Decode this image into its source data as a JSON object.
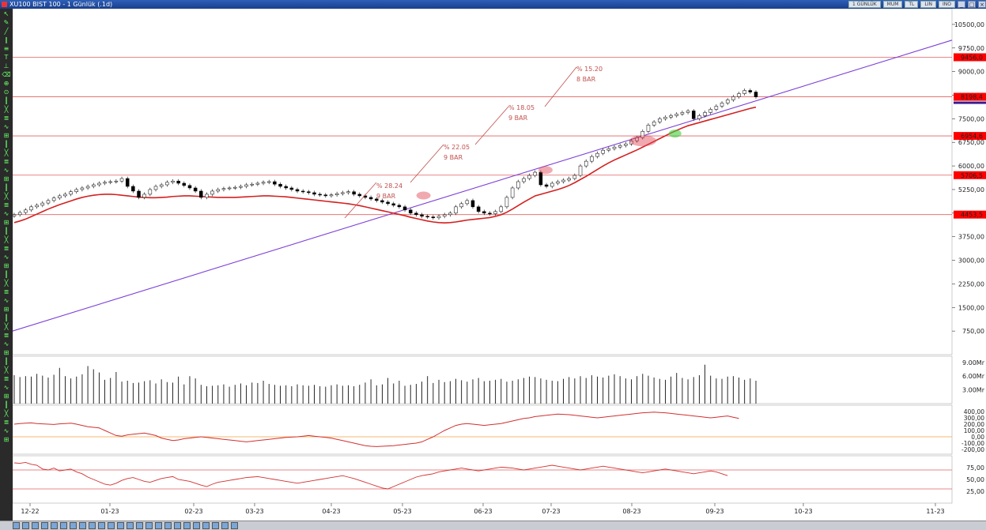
{
  "window": {
    "title": "XU100 BIST 100 - 1 Günlük (.1d)",
    "right_controls": [
      "1 GÜNLÜK",
      "MUM",
      "TL",
      "LIN",
      "INO"
    ]
  },
  "toolbar_icons": [
    "pointer-icon",
    "pen-icon",
    "line-icon",
    "channel-icon",
    "fib-icon",
    "text-icon",
    "ruler-icon",
    "eraser-icon",
    "zoom-icon",
    "magnet-icon"
  ],
  "price_axis": {
    "ticks": [
      "10500,00",
      "9750,00",
      "9000,00",
      "8250,00",
      "7500,00",
      "6750,00",
      "6000,00",
      "5250,00",
      "4500,00",
      "3750,00",
      "3000,00",
      "2250,00",
      "1500,00",
      "750,00"
    ],
    "tick_values": [
      10500,
      9750,
      9000,
      8250,
      7500,
      6750,
      6000,
      5250,
      4500,
      3750,
      3000,
      2250,
      1500,
      750
    ],
    "range": [
      0,
      11000
    ],
    "badges": [
      {
        "label": "9456,0",
        "value": 9456
      },
      {
        "label": "8198,4",
        "value": 8198.4
      },
      {
        "label": "6954,6",
        "value": 6954.6
      },
      {
        "label": "5706,5",
        "value": 5706.5
      },
      {
        "label": "4453,5",
        "value": 4453.5
      }
    ]
  },
  "date_axis": [
    "12-22",
    "01-23",
    "02-23",
    "03-23",
    "04-23",
    "05-23",
    "06-23",
    "07-23",
    "08-23",
    "09-23",
    "10-23",
    "11-23"
  ],
  "annotations": [
    {
      "pct": "% 28.24",
      "bars": "9 BAR"
    },
    {
      "pct": "% 22.05",
      "bars": "9 BAR"
    },
    {
      "pct": "% 18.05",
      "bars": "9 BAR"
    },
    {
      "pct": "% 15.20",
      "bars": "8 BAR"
    }
  ],
  "volume_axis": [
    "9.00Mr",
    "6.00Mr",
    "3.00Mr"
  ],
  "osc_axis": [
    "400,00",
    "300,00",
    "200,00",
    "100,00",
    "0,00",
    "-100,00",
    "-200,00"
  ],
  "rsi_axis": [
    "75,00",
    "50,00",
    "25,00"
  ],
  "colors": {
    "hline": "#e06060",
    "trend": "#7b3fd6",
    "ma": "#d42020",
    "badge": "#ff0000",
    "osc_ref": "#f0a040",
    "rsi_ref": "#e06060"
  },
  "chart_data": {
    "type": "candlestick",
    "series": [
      {
        "name": "XU100",
        "close": [
          4450,
          4520,
          4600,
          4700,
          4750,
          4820,
          4900,
          4980,
          5050,
          5100,
          5180,
          5250,
          5300,
          5350,
          5400,
          5450,
          5480,
          5500,
          5520,
          5600,
          5350,
          5200,
          5000,
          5100,
          5250,
          5350,
          5400,
          5480,
          5520,
          5450,
          5380,
          5300,
          5200,
          5000,
          5100,
          5200,
          5250,
          5280,
          5300,
          5320,
          5350,
          5400,
          5420,
          5450,
          5480,
          5500,
          5420,
          5350,
          5300,
          5250,
          5200,
          5180,
          5150,
          5100,
          5080,
          5050,
          5080,
          5120,
          5150,
          5180,
          5100,
          5050,
          5000,
          4950,
          4900,
          4850,
          4800,
          4750,
          4700,
          4600,
          4500,
          4450,
          4400,
          4380,
          4350,
          4400,
          4450,
          4500,
          4700,
          4800,
          4900,
          4700,
          4550,
          4500,
          4480,
          4550,
          4700,
          5000,
          5300,
          5500,
          5600,
          5700,
          5800,
          5400,
          5350,
          5450,
          5500,
          5550,
          5600,
          5700,
          6000,
          6150,
          6300,
          6400,
          6500,
          6550,
          6600,
          6650,
          6700,
          6800,
          6900,
          7100,
          7300,
          7400,
          7500,
          7550,
          7600,
          7650,
          7700,
          7750,
          7500,
          7600,
          7700,
          7800,
          7900,
          8000,
          8100,
          8200,
          8300,
          8400,
          8350,
          8198
        ]
      },
      {
        "name": "MA",
        "values": [
          4450,
          4500,
          4560,
          4640,
          4720,
          4800,
          4880,
          4950,
          5020,
          5080,
          5140,
          5200,
          5250,
          5290,
          5320,
          5340,
          5350,
          5350,
          5340,
          5320,
          5300,
          5280,
          5260,
          5250,
          5240,
          5240,
          5250,
          5260,
          5280,
          5290,
          5300,
          5300,
          5290,
          5280,
          5270,
          5260,
          5250,
          5250,
          5250,
          5250,
          5260,
          5270,
          5280,
          5290,
          5300,
          5300,
          5290,
          5280,
          5270,
          5250,
          5230,
          5210,
          5190,
          5170,
          5150,
          5130,
          5110,
          5090,
          5070,
          5050,
          5020,
          4990,
          4950,
          4910,
          4870,
          4830,
          4790,
          4750,
          4710,
          4670,
          4620,
          4580,
          4540,
          4500,
          4470,
          4450,
          4440,
          4450,
          4470,
          4500,
          4530,
          4550,
          4570,
          4590,
          4610,
          4650,
          4700,
          4780,
          4880,
          4990,
          5100,
          5200,
          5300,
          5350,
          5400,
          5450,
          5500,
          5560,
          5630,
          5720,
          5820,
          5920,
          6030,
          6140,
          6250,
          6350,
          6440,
          6520,
          6600,
          6680,
          6760,
          6850,
          6940,
          7030,
          7120,
          7210,
          7300,
          7380,
          7460,
          7530,
          7580,
          7630,
          7680,
          7730,
          7780,
          7830,
          7880,
          7930,
          7980,
          8030,
          8080,
          8120
        ]
      }
    ],
    "volume": [
      6.2,
      5.8,
      6.0,
      5.9,
      6.5,
      6.1,
      5.7,
      6.3,
      7.8,
      6.0,
      5.5,
      5.9,
      6.4,
      8.2,
      7.5,
      6.8,
      5.2,
      5.6,
      6.9,
      4.8,
      5.0,
      4.5,
      4.6,
      4.9,
      5.1,
      4.4,
      5.3,
      4.7,
      4.6,
      5.9,
      4.2,
      6.0,
      5.5,
      4.1,
      3.8,
      3.9,
      4.0,
      4.2,
      3.7,
      4.1,
      4.4,
      4.0,
      4.6,
      4.5,
      5.0,
      4.3,
      4.1,
      3.9,
      4.0,
      3.8,
      4.2,
      4.0,
      3.9,
      4.1,
      3.8,
      3.7,
      4.0,
      4.2,
      3.9,
      4.0,
      3.8,
      4.1,
      4.6,
      5.3,
      4.0,
      4.2,
      5.6,
      4.4,
      5.0,
      3.9,
      4.1,
      4.3,
      4.8,
      6.0,
      4.5,
      5.2,
      4.7,
      4.9,
      5.4,
      5.1,
      4.8,
      5.3,
      5.6,
      4.9,
      5.0,
      5.2,
      5.4,
      4.8,
      5.0,
      5.3,
      5.6,
      5.9,
      5.8,
      5.5,
      5.2,
      5.0,
      4.9,
      5.4,
      5.8,
      5.5,
      6.0,
      5.6,
      6.2,
      5.9,
      5.7,
      6.1,
      6.4,
      6.0,
      5.5,
      5.3,
      6.0,
      6.5,
      6.1,
      5.7,
      5.4,
      5.2,
      5.9,
      6.7,
      5.6,
      5.3,
      5.8,
      6.2,
      8.5,
      6.1,
      5.5,
      5.4,
      5.9,
      6.0,
      5.7,
      5.2,
      5.5,
      5.0
    ],
    "oscillator": [
      200,
      210,
      215,
      220,
      210,
      205,
      200,
      195,
      205,
      210,
      215,
      200,
      180,
      160,
      150,
      140,
      100,
      60,
      20,
      10,
      30,
      40,
      50,
      60,
      40,
      20,
      -20,
      -40,
      -60,
      -50,
      -30,
      -20,
      -10,
      0,
      -10,
      -20,
      -30,
      -40,
      -50,
      -60,
      -70,
      -80,
      -70,
      -60,
      -50,
      -40,
      -30,
      -20,
      -10,
      -5,
      0,
      10,
      20,
      10,
      0,
      -10,
      -20,
      -40,
      -60,
      -80,
      -100,
      -120,
      -140,
      -150,
      -155,
      -150,
      -145,
      -140,
      -130,
      -120,
      -110,
      -100,
      -80,
      -40,
      0,
      50,
      100,
      140,
      180,
      200,
      210,
      200,
      190,
      180,
      190,
      200,
      210,
      230,
      250,
      270,
      290,
      300,
      320,
      330,
      340,
      350,
      360,
      355,
      350,
      340,
      330,
      320,
      310,
      300,
      310,
      320,
      330,
      340,
      350,
      360,
      370,
      380,
      385,
      390,
      385,
      380,
      370,
      360,
      350,
      340,
      330,
      320,
      310,
      300,
      310,
      320,
      330,
      310,
      290
    ],
    "rsi": [
      85,
      84,
      86,
      82,
      80,
      72,
      70,
      74,
      68,
      70,
      72,
      66,
      62,
      55,
      50,
      45,
      40,
      38,
      42,
      48,
      52,
      54,
      50,
      46,
      44,
      48,
      52,
      54,
      56,
      50,
      48,
      46,
      42,
      38,
      35,
      40,
      44,
      46,
      48,
      50,
      52,
      54,
      55,
      56,
      54,
      52,
      50,
      48,
      46,
      44,
      42,
      44,
      46,
      48,
      50,
      52,
      54,
      56,
      58,
      55,
      52,
      48,
      44,
      40,
      36,
      32,
      30,
      35,
      40,
      45,
      50,
      55,
      58,
      60,
      62,
      66,
      68,
      70,
      72,
      74,
      72,
      70,
      68,
      70,
      72,
      74,
      76,
      75,
      74,
      72,
      70,
      72,
      74,
      76,
      78,
      80,
      78,
      76,
      74,
      72,
      70,
      72,
      74,
      76,
      78,
      76,
      74,
      72,
      70,
      68,
      66,
      64,
      66,
      68,
      70,
      72,
      70,
      68,
      66,
      64,
      62,
      64,
      66,
      68,
      66,
      62,
      58
    ],
    "trendline": {
      "start": [
        0,
        750
      ],
      "end": [
        1,
        10000
      ]
    },
    "hlines": [
      9456,
      8198.4,
      6954.6,
      5706.5,
      4453.5
    ]
  }
}
